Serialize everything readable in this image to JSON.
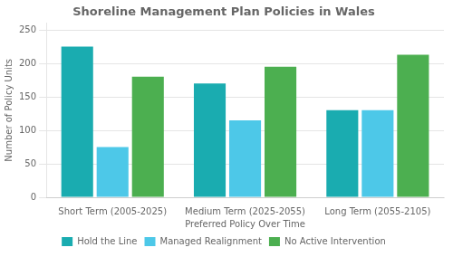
{
  "chart_data": {
    "type": "bar",
    "title": "Shoreline Management Plan Policies in Wales",
    "xlabel": "Preferred Policy Over Time",
    "ylabel": "Number of Policy Units",
    "categories": [
      "Short Term (2005-2025)",
      "Medium Term (2025-2055)",
      "Long Term (2055-2105)"
    ],
    "series": [
      {
        "name": "Hold the Line",
        "color": "#1AACB0",
        "values": [
          225,
          170,
          130
        ]
      },
      {
        "name": "Managed Realignment",
        "color": "#4DC8E8",
        "values": [
          75,
          115,
          130
        ]
      },
      {
        "name": "No Active Intervention",
        "color": "#4CAF50",
        "values": [
          180,
          195,
          213
        ]
      }
    ],
    "ylim": [
      0,
      260
    ],
    "yticks": [
      0,
      50,
      100,
      150,
      200,
      250
    ],
    "grid": true,
    "legend": "bottom"
  }
}
